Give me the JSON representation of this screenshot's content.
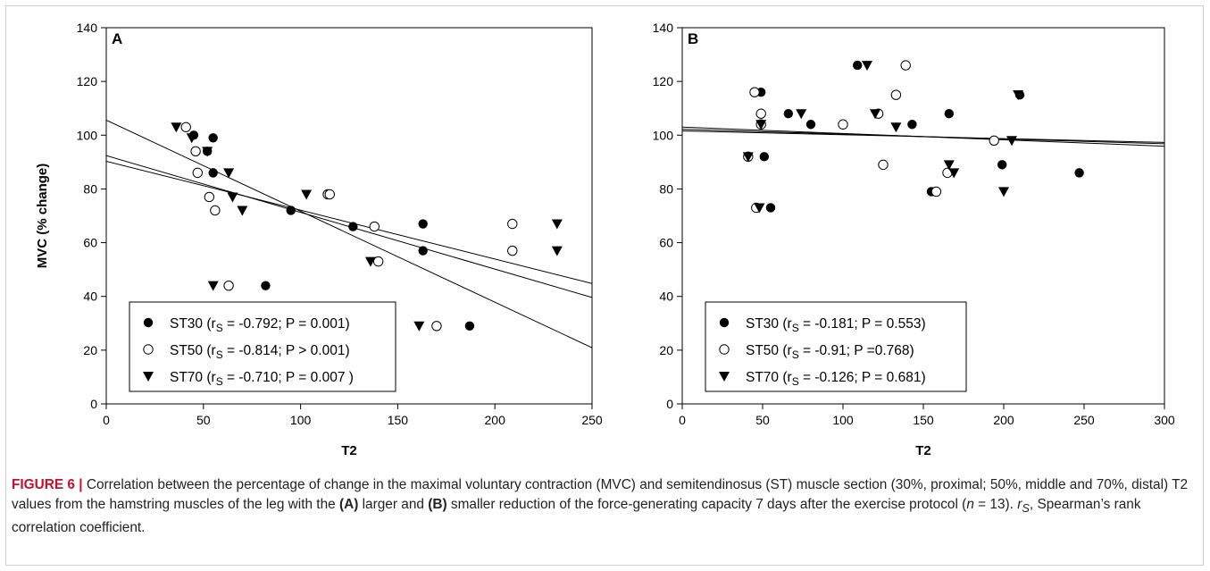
{
  "chart_data": [
    {
      "type": "scatter",
      "panel_label": "A",
      "xlabel": "T2",
      "ylabel": "MVC (% change)",
      "xlim": [
        0,
        250
      ],
      "ylim": [
        0,
        140
      ],
      "xticks": [
        0,
        50,
        100,
        150,
        200,
        250
      ],
      "yticks": [
        0,
        20,
        40,
        60,
        80,
        100,
        120,
        140
      ],
      "legend_position": "bottom-left",
      "series": [
        {
          "name": "ST30",
          "marker": "filled-circle",
          "legend_stat": "-0.792; P = 0.001)",
          "points": [
            [
              45,
              100
            ],
            [
              52,
              94
            ],
            [
              55,
              99
            ],
            [
              55,
              86
            ],
            [
              82,
              44
            ],
            [
              95,
              72
            ],
            [
              127,
              66
            ],
            [
              163,
              67
            ],
            [
              163,
              57
            ],
            [
              187,
              29
            ]
          ],
          "fit": [
            [
              0,
              92.4
            ],
            [
              250,
              39.6
            ]
          ]
        },
        {
          "name": "ST50",
          "marker": "open-circle",
          "legend_stat": "-0.814; P > 0.001)",
          "points": [
            [
              41,
              103
            ],
            [
              46,
              94
            ],
            [
              47,
              86
            ],
            [
              53,
              77
            ],
            [
              56,
              72
            ],
            [
              63,
              44
            ],
            [
              114,
              78
            ],
            [
              115,
              78
            ],
            [
              138,
              66
            ],
            [
              140,
              53
            ],
            [
              170,
              29
            ],
            [
              209,
              67
            ],
            [
              209,
              57
            ]
          ],
          "fit": [
            [
              0,
              105.6
            ],
            [
              250,
              20.9
            ]
          ]
        },
        {
          "name": "ST70",
          "marker": "filled-triangle-down",
          "legend_stat": "-0.710; P = 0.007 )",
          "points": [
            [
              36,
              103
            ],
            [
              44,
              99
            ],
            [
              52,
              94
            ],
            [
              55,
              44
            ],
            [
              63,
              86
            ],
            [
              65,
              77
            ],
            [
              70,
              72
            ],
            [
              103,
              78
            ],
            [
              136,
              53
            ],
            [
              161,
              29
            ],
            [
              232,
              67
            ],
            [
              232,
              57
            ]
          ],
          "fit": [
            [
              0,
              90.3
            ],
            [
              250,
              44.8
            ]
          ]
        }
      ]
    },
    {
      "type": "scatter",
      "panel_label": "B",
      "xlabel": "T2",
      "ylabel": "",
      "xlim": [
        0,
        300
      ],
      "ylim": [
        0,
        140
      ],
      "xticks": [
        0,
        50,
        100,
        150,
        200,
        250,
        300
      ],
      "yticks": [
        0,
        20,
        40,
        60,
        80,
        100,
        120,
        140
      ],
      "legend_position": "bottom-left",
      "series": [
        {
          "name": "ST30",
          "marker": "filled-circle",
          "legend_stat": "-0.181; P = 0.553)",
          "points": [
            [
              49,
              116
            ],
            [
              51,
              92
            ],
            [
              55,
              73
            ],
            [
              66,
              108
            ],
            [
              80,
              104
            ],
            [
              109,
              126
            ],
            [
              143,
              104
            ],
            [
              155,
              79
            ],
            [
              166,
              108
            ],
            [
              199,
              89
            ],
            [
              210,
              115
            ],
            [
              247,
              86
            ]
          ],
          "fit": [
            [
              0,
              103.0
            ],
            [
              300,
              95.9
            ]
          ]
        },
        {
          "name": "ST50",
          "marker": "open-circle",
          "legend_stat": "-0.91; P =0.768)",
          "points": [
            [
              41,
              92
            ],
            [
              45,
              116
            ],
            [
              46,
              73
            ],
            [
              49,
              104
            ],
            [
              49,
              108
            ],
            [
              100,
              104
            ],
            [
              122,
              108
            ],
            [
              125,
              89
            ],
            [
              133,
              115
            ],
            [
              139,
              126
            ],
            [
              158,
              79
            ],
            [
              165,
              86
            ],
            [
              194,
              98
            ]
          ],
          "fit": [
            [
              0,
              102.2
            ],
            [
              300,
              96.8
            ]
          ]
        },
        {
          "name": "ST70",
          "marker": "filled-triangle-down",
          "legend_stat": "-0.126; P = 0.681)",
          "points": [
            [
              41,
              92
            ],
            [
              48,
              73
            ],
            [
              49,
              104
            ],
            [
              74,
              108
            ],
            [
              115,
              126
            ],
            [
              120,
              108
            ],
            [
              133,
              103
            ],
            [
              166,
              89
            ],
            [
              169,
              86
            ],
            [
              200,
              79
            ],
            [
              205,
              98
            ],
            [
              209,
              115
            ]
          ],
          "fit": [
            [
              0,
              101.6
            ],
            [
              300,
              97.3
            ]
          ]
        }
      ]
    }
  ],
  "legend_stat_prefix": " (r",
  "legend_stat_subscript": "S",
  "legend_stat_eq": " = ",
  "caption": {
    "figure_label": "FIGURE 6 |",
    "part1": " Correlation between the percentage of change in the maximal voluntary contraction (MVC) and semitendinosus (ST) muscle section (30%, proximal; 50%, middle and 70%, distal) T2 values from the hamstring muscles of the leg with the ",
    "bold_a": "(A)",
    "part2": " larger and ",
    "bold_b": "(B)",
    "part3": " smaller reduction of the force-generating capacity 7 days after the exercise protocol (",
    "n_var": "n",
    "part4": " = 13). ",
    "rs_var": "r",
    "rs_sub": "S",
    "part5": ", Spearman’s rank correlation coefficient."
  }
}
